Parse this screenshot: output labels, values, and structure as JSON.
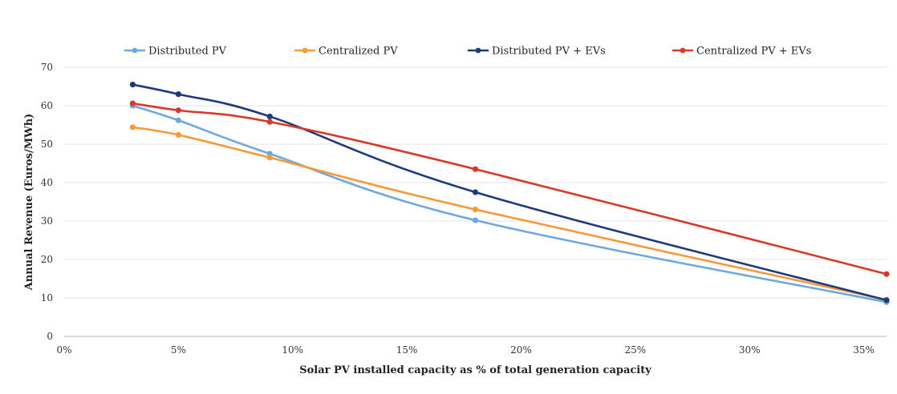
{
  "chart_data": {
    "type": "line",
    "title": "",
    "xlabel": "Solar PV installed capacity as % of total generation capacity",
    "ylabel": "Annual Revenue (Euros/MWh)",
    "xlim": [
      0,
      36
    ],
    "ylim": [
      0,
      70
    ],
    "x_ticks": [
      0,
      5,
      10,
      15,
      20,
      25,
      30,
      35
    ],
    "x_tick_labels": [
      "0%",
      "5%",
      "10%",
      "15%",
      "20%",
      "25%",
      "30%",
      "35%"
    ],
    "y_ticks": [
      0,
      10,
      20,
      30,
      40,
      50,
      60,
      70
    ],
    "y_tick_labels": [
      "0",
      "10",
      "20",
      "30",
      "40",
      "50",
      "60",
      "70"
    ],
    "grid": true,
    "legend_position": "top",
    "series": [
      {
        "name": "Distributed PV",
        "color": "#6fa8dc",
        "x": [
          3,
          5,
          9,
          18,
          36
        ],
        "values": [
          60.0,
          56.2,
          47.5,
          30.2,
          8.9
        ]
      },
      {
        "name": "Centralized PV",
        "color": "#f6993a",
        "x": [
          3,
          5,
          9,
          18,
          36
        ],
        "values": [
          54.4,
          52.4,
          46.5,
          33.0,
          9.5
        ]
      },
      {
        "name": "Distributed PV + EVs",
        "color": "#1f3a7a",
        "x": [
          3,
          5,
          9,
          18,
          36
        ],
        "values": [
          65.5,
          63.0,
          57.2,
          37.5,
          9.4
        ]
      },
      {
        "name": "Centralized PV + EVs",
        "color": "#d53a2a",
        "x": [
          3,
          5,
          9,
          18,
          36
        ],
        "values": [
          60.6,
          58.8,
          55.8,
          43.5,
          16.2
        ]
      }
    ]
  }
}
